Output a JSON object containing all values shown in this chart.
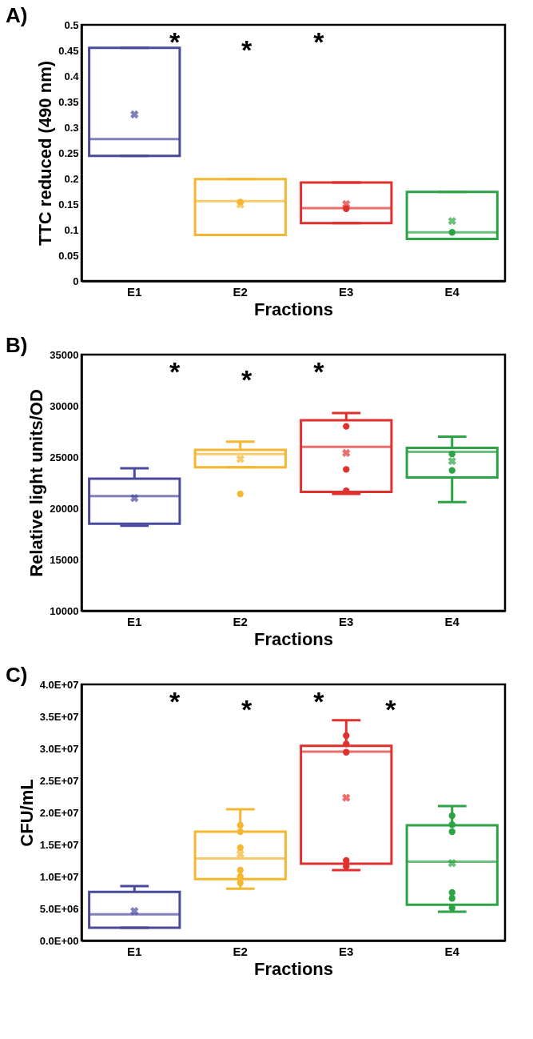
{
  "chart_data": [
    {
      "type": "box",
      "title": "A)",
      "xlabel": "Fractions",
      "ylabel": "TTC reduced (490 nm)",
      "categories": [
        "E1",
        "E2",
        "E3",
        "E4"
      ],
      "colors": [
        "#4a4a9c",
        "#f5b731",
        "#e0312f",
        "#2ca344"
      ],
      "grid": false,
      "boxes": [
        {
          "low": 0.244,
          "q1": 0.244,
          "median": 0.277,
          "q3": 0.455,
          "high": 0.455,
          "mean": 0.325
        },
        {
          "low": 0.09,
          "q1": 0.09,
          "median": 0.156,
          "q3": 0.199,
          "high": 0.199,
          "mean": 0.149
        },
        {
          "low": 0.113,
          "q1": 0.113,
          "median": 0.142,
          "q3": 0.192,
          "high": 0.192,
          "mean": 0.15
        },
        {
          "low": 0.082,
          "q1": 0.082,
          "median": 0.095,
          "q3": 0.174,
          "high": 0.174,
          "mean": 0.117
        }
      ],
      "series": [
        {
          "type": "scatter",
          "marker": "circle",
          "x": [
            "E2",
            "E3",
            "E4"
          ],
          "values": [
            0.154,
            0.141,
            0.095
          ],
          "colors": [
            "#f5b731",
            "#e0312f",
            "#2ca344"
          ]
        }
      ],
      "ylim": [
        0,
        0.5
      ],
      "yticks": [
        0,
        0.05,
        0.1,
        0.15,
        0.2,
        0.25,
        0.3,
        0.35,
        0.4,
        0.45,
        0.5
      ],
      "annotations": [
        "*",
        "*",
        "*"
      ]
    },
    {
      "type": "box",
      "title": "B)",
      "xlabel": "Fractions",
      "ylabel": "Relative light units/OD",
      "categories": [
        "E1",
        "E2",
        "E3",
        "E4"
      ],
      "colors": [
        "#4a4a9c",
        "#f5b731",
        "#e0312f",
        "#2ca344"
      ],
      "grid": false,
      "boxes": [
        {
          "low": 18300,
          "q1": 18500,
          "median": 21200,
          "q3": 22900,
          "high": 23900,
          "mean": 21000
        },
        {
          "low": 24000,
          "q1": 24000,
          "median": 25300,
          "q3": 25700,
          "high": 26500,
          "mean": 24800
        },
        {
          "low": 21400,
          "q1": 21600,
          "median": 26000,
          "q3": 28600,
          "high": 29300,
          "mean": 25400
        },
        {
          "low": 20600,
          "q1": 23000,
          "median": 25500,
          "q3": 25900,
          "high": 27000,
          "mean": 24600
        }
      ],
      "series": [
        {
          "type": "scatter",
          "marker": "circle",
          "x": [
            "E2",
            "E3",
            "E3",
            "E3",
            "E4",
            "E4"
          ],
          "values": [
            21400,
            28000,
            23800,
            21700,
            25300,
            23700
          ],
          "colors": [
            "#f5b731",
            "#e0312f",
            "#e0312f",
            "#e0312f",
            "#2ca344",
            "#2ca344"
          ]
        }
      ],
      "ylim": [
        10000,
        35000
      ],
      "yticks": [
        10000,
        15000,
        20000,
        25000,
        30000,
        35000
      ],
      "annotations": [
        "*",
        "*",
        "*"
      ]
    },
    {
      "type": "box",
      "title": "C)",
      "xlabel": "Fractions",
      "ylabel": "CFU/mL",
      "categories": [
        "E1",
        "E2",
        "E3",
        "E4"
      ],
      "colors": [
        "#4a4a9c",
        "#f5b731",
        "#e0312f",
        "#2ca344"
      ],
      "grid": false,
      "boxes": [
        {
          "low": 2000000,
          "q1": 2000000,
          "median": 4100000,
          "q3": 7600000,
          "high": 8500000,
          "mean": 4600000
        },
        {
          "low": 8100000,
          "q1": 9600000,
          "median": 12800000,
          "q3": 17000000,
          "high": 20500000,
          "mean": 13500000
        },
        {
          "low": 11000000,
          "q1": 12000000,
          "median": 29500000,
          "q3": 30400000,
          "high": 34400000,
          "mean": 22300000
        },
        {
          "low": 4500000,
          "q1": 5600000,
          "median": 12300000,
          "q3": 18000000,
          "high": 21000000,
          "mean": 12100000
        }
      ],
      "series": [
        {
          "type": "scatter",
          "marker": "circle",
          "x": [
            "E2",
            "E2",
            "E2",
            "E2",
            "E2",
            "E2",
            "E3",
            "E3",
            "E3",
            "E3",
            "E3",
            "E4",
            "E4",
            "E4",
            "E4",
            "E4",
            "E4"
          ],
          "values": [
            18000000,
            17000000,
            14500000,
            11000000,
            10000000,
            9000000,
            32000000,
            30700000,
            29400000,
            12500000,
            11600000,
            19500000,
            18100000,
            17000000,
            7500000,
            6600000,
            5100000
          ],
          "colors": [
            "#f5b731",
            "#f5b731",
            "#f5b731",
            "#f5b731",
            "#f5b731",
            "#f5b731",
            "#e0312f",
            "#e0312f",
            "#e0312f",
            "#e0312f",
            "#e0312f",
            "#2ca344",
            "#2ca344",
            "#2ca344",
            "#2ca344",
            "#2ca344",
            "#2ca344"
          ]
        }
      ],
      "ylim": [
        0,
        40000000
      ],
      "yticks": [
        {
          "value": 0,
          "label": "0.0E+00"
        },
        {
          "value": 5000000,
          "label": "5.0E+06"
        },
        {
          "value": 10000000,
          "label": "1.0E+07"
        },
        {
          "value": 15000000,
          "label": "1.5E+07"
        },
        {
          "value": 20000000,
          "label": "2.0E+07"
        },
        {
          "value": 25000000,
          "label": "2.5E+07"
        },
        {
          "value": 30000000,
          "label": "3.0E+07"
        },
        {
          "value": 35000000,
          "label": "3.5E+07"
        },
        {
          "value": 40000000,
          "label": "4.0E+07"
        }
      ],
      "annotations": [
        "*",
        "*",
        "*",
        "*"
      ]
    }
  ]
}
